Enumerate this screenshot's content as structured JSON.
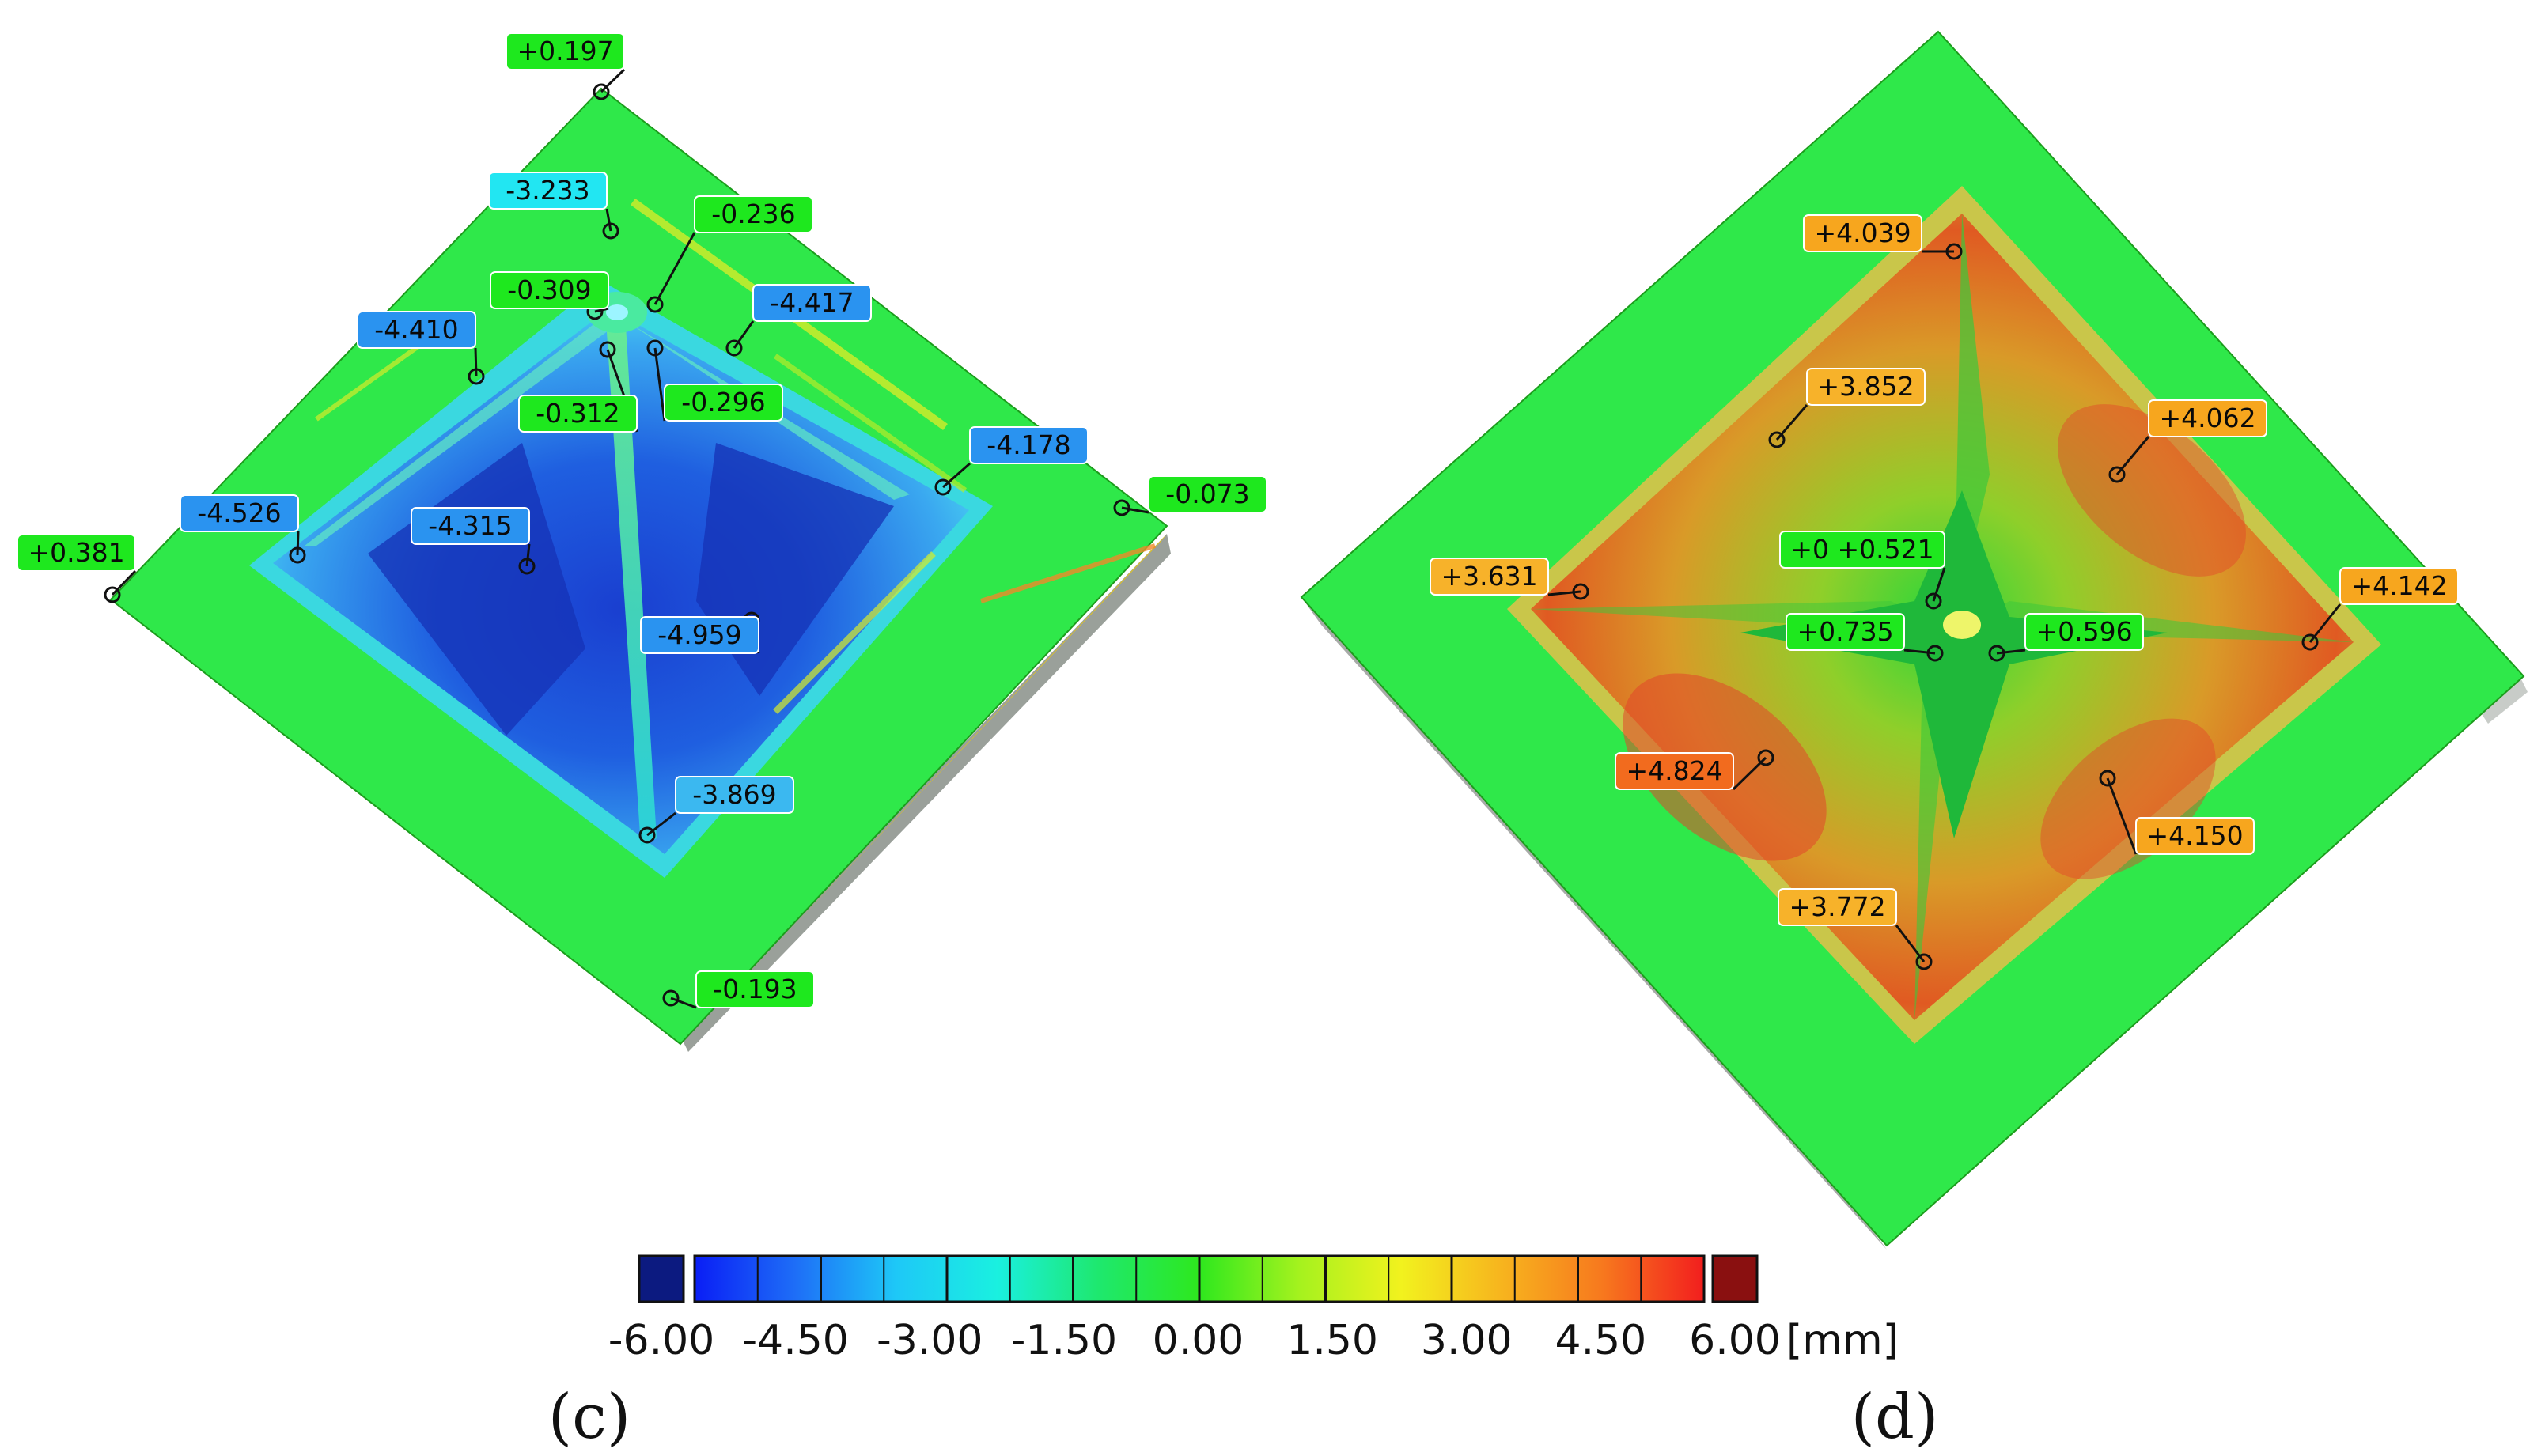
{
  "panels": [
    {
      "label": "(c)",
      "annotations": [
        {
          "text": "+0.197",
          "color": "#1ee81e"
        },
        {
          "text": "-3.233",
          "color": "#22e6f2"
        },
        {
          "text": "-0.236",
          "color": "#1ee81e"
        },
        {
          "text": "-0.309",
          "color": "#1ee81e"
        },
        {
          "text": "-4.417",
          "color": "#2a93f0"
        },
        {
          "text": "-4.410",
          "color": "#2a93f0"
        },
        {
          "text": "-0.312",
          "color": "#1ee81e"
        },
        {
          "text": "-0.296",
          "color": "#1ee81e"
        },
        {
          "text": "-4.178",
          "color": "#2a93f0"
        },
        {
          "text": "-0.073",
          "color": "#1ee81e"
        },
        {
          "text": "-4.526",
          "color": "#2a93f0"
        },
        {
          "text": "-4.315",
          "color": "#2a93f0"
        },
        {
          "text": "+0.381",
          "color": "#1ee81e"
        },
        {
          "text": "-4.959",
          "color": "#2a93f0"
        },
        {
          "text": "-3.869",
          "color": "#3bb8f0"
        },
        {
          "text": "-0.193",
          "color": "#1ee81e"
        }
      ]
    },
    {
      "label": "(d)",
      "annotations": [
        {
          "text": "+4.039",
          "color": "#f7a61e"
        },
        {
          "text": "+3.852",
          "color": "#f7b22a"
        },
        {
          "text": "+4.062",
          "color": "#f7a61e"
        },
        {
          "text": "+0 +0.521",
          "color": "#1ee81e"
        },
        {
          "text": "+3.631",
          "color": "#f7b22a"
        },
        {
          "text": "+4.142",
          "color": "#f7a61e"
        },
        {
          "text": "+0.735",
          "color": "#1ee81e"
        },
        {
          "text": "+0.596",
          "color": "#1ee81e"
        },
        {
          "text": "+4.824",
          "color": "#f26b1e"
        },
        {
          "text": "+4.150",
          "color": "#f7a61e"
        },
        {
          "text": "+3.772",
          "color": "#f7b22a"
        }
      ]
    }
  ],
  "color_scale": {
    "ticks": [
      "-6.00",
      "-4.50",
      "-3.00",
      "-1.50",
      "0.00",
      "1.50",
      "3.00",
      "4.50",
      "6.00"
    ],
    "unit": "[mm]",
    "min": -6.0,
    "max": 6.0,
    "under_color": "#0c1a80",
    "over_color": "#8a1010",
    "gradient": [
      "#0a1ef5",
      "#1e6ef7",
      "#1ec8f7",
      "#1af0e0",
      "#1ee86e",
      "#2ee81e",
      "#a6f21e",
      "#f2f21e",
      "#f7b41e",
      "#f7781e",
      "#f21e1e"
    ]
  }
}
